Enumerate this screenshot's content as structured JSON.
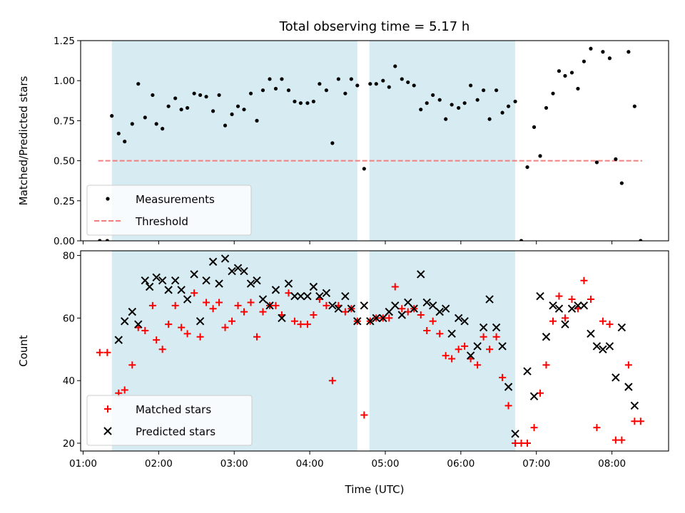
{
  "chart_data": [
    {
      "type": "scatter",
      "panel": "top",
      "title": "Total observing time = 5.17 h",
      "ylabel": "Matched/Predicted stars",
      "xlabel": "",
      "xlim": [
        0.967,
        8.75
      ],
      "ylim": [
        0,
        1.25
      ],
      "yticks": [
        "0.00",
        "0.25",
        "0.50",
        "0.75",
        "1.00",
        "1.25"
      ],
      "legend_position": "lower-left",
      "shaded_intervals": [
        [
          1.38,
          4.63
        ],
        [
          4.79,
          6.72
        ]
      ],
      "shade_color": "#add8e6",
      "threshold": {
        "name": "Threshold",
        "value": 0.5,
        "x_start": 1.2,
        "x_end": 8.4,
        "color": "#f08080"
      },
      "series": [
        {
          "name": "Measurements",
          "color": "#000000",
          "marker": "dot",
          "x": [
            1.22,
            1.32,
            1.38,
            1.47,
            1.55,
            1.65,
            1.73,
            1.82,
            1.92,
            1.97,
            2.05,
            2.13,
            2.22,
            2.3,
            2.38,
            2.47,
            2.55,
            2.63,
            2.72,
            2.8,
            2.88,
            2.97,
            3.05,
            3.13,
            3.22,
            3.3,
            3.38,
            3.47,
            3.55,
            3.63,
            3.72,
            3.8,
            3.88,
            3.97,
            4.05,
            4.13,
            4.22,
            4.3,
            4.38,
            4.47,
            4.55,
            4.63,
            4.72,
            4.8,
            4.88,
            4.97,
            5.05,
            5.13,
            5.22,
            5.3,
            5.38,
            5.47,
            5.55,
            5.63,
            5.72,
            5.8,
            5.88,
            5.97,
            6.05,
            6.13,
            6.22,
            6.3,
            6.38,
            6.47,
            6.55,
            6.63,
            6.72,
            6.8,
            6.88,
            6.97,
            7.05,
            7.13,
            7.22,
            7.3,
            7.38,
            7.47,
            7.55,
            7.63,
            7.72,
            7.8,
            7.88,
            7.97,
            8.05,
            8.13,
            8.22,
            8.3,
            8.38
          ],
          "y": [
            0.0,
            0.0,
            0.78,
            0.67,
            0.62,
            0.73,
            0.98,
            0.77,
            0.91,
            0.73,
            0.7,
            0.84,
            0.89,
            0.82,
            0.83,
            0.92,
            0.91,
            0.9,
            0.81,
            0.91,
            0.72,
            0.79,
            0.84,
            0.82,
            0.92,
            0.75,
            0.94,
            1.01,
            0.95,
            1.01,
            0.94,
            0.87,
            0.86,
            0.86,
            0.87,
            0.98,
            0.94,
            0.61,
            1.01,
            0.92,
            1.01,
            0.97,
            0.45,
            0.98,
            0.98,
            1.0,
            0.96,
            1.09,
            1.01,
            0.99,
            0.97,
            0.82,
            0.86,
            0.91,
            0.88,
            0.76,
            0.85,
            0.83,
            0.86,
            0.97,
            0.88,
            0.94,
            0.76,
            0.94,
            0.8,
            0.84,
            0.87,
            0.0,
            0.46,
            0.71,
            0.53,
            0.83,
            0.92,
            1.06,
            1.03,
            1.05,
            0.95,
            1.12,
            1.2,
            0.49,
            1.18,
            1.14,
            0.51,
            0.36,
            1.18,
            0.84,
            0.0
          ]
        }
      ]
    },
    {
      "type": "scatter",
      "panel": "bottom",
      "title": "",
      "ylabel": "Count",
      "xlabel": "Time (UTC)",
      "xlim": [
        0.967,
        8.75
      ],
      "ylim": [
        17.5,
        81.5
      ],
      "yticks": [
        "20",
        "40",
        "60",
        "80"
      ],
      "xticks": [
        "01:00",
        "02:00",
        "03:00",
        "04:00",
        "05:00",
        "06:00",
        "07:00",
        "08:00"
      ],
      "xtick_values": [
        1,
        2,
        3,
        4,
        5,
        6,
        7,
        8
      ],
      "legend_position": "lower-left",
      "shaded_intervals": [
        [
          1.38,
          4.63
        ],
        [
          4.79,
          6.72
        ]
      ],
      "shade_color": "#add8e6",
      "series": [
        {
          "name": "Matched stars",
          "color": "#ff0000",
          "marker": "plus",
          "x": [
            1.22,
            1.32,
            1.47,
            1.55,
            1.65,
            1.73,
            1.82,
            1.92,
            1.97,
            2.05,
            2.13,
            2.22,
            2.3,
            2.38,
            2.47,
            2.55,
            2.63,
            2.72,
            2.8,
            2.88,
            2.97,
            3.05,
            3.13,
            3.22,
            3.3,
            3.38,
            3.47,
            3.55,
            3.63,
            3.72,
            3.8,
            3.88,
            3.97,
            4.05,
            4.13,
            4.22,
            4.3,
            4.38,
            4.47,
            4.55,
            4.63,
            4.72,
            4.8,
            4.88,
            4.97,
            5.05,
            5.13,
            5.22,
            5.3,
            5.38,
            5.47,
            5.55,
            5.63,
            5.72,
            5.8,
            5.88,
            5.97,
            6.05,
            6.13,
            6.22,
            6.3,
            6.38,
            6.47,
            6.55,
            6.63,
            6.72,
            6.8,
            6.88,
            6.97,
            7.05,
            7.13,
            7.22,
            7.3,
            7.38,
            7.47,
            7.55,
            7.63,
            7.72,
            7.8,
            7.88,
            7.97,
            8.05,
            8.13,
            8.22,
            8.3,
            8.38
          ],
          "y": [
            49,
            49,
            36,
            37,
            45,
            57,
            56,
            64,
            53,
            50,
            58,
            64,
            57,
            55,
            68,
            54,
            65,
            63,
            65,
            57,
            59,
            64,
            62,
            65,
            54,
            62,
            64,
            64,
            61,
            68,
            59,
            58,
            58,
            61,
            66,
            64,
            40,
            64,
            62,
            63,
            59,
            29,
            59,
            60,
            60,
            60,
            70,
            63,
            62,
            63,
            61,
            56,
            59,
            55,
            48,
            47,
            50,
            51,
            47,
            45,
            54,
            50,
            54,
            41,
            32,
            20,
            20,
            20,
            25,
            36,
            45,
            59,
            67,
            60,
            66,
            63,
            72,
            66,
            25,
            59,
            58,
            21,
            21,
            45,
            27,
            27
          ]
        },
        {
          "name": "Predicted stars",
          "color": "#000000",
          "marker": "cross",
          "x": [
            1.47,
            1.55,
            1.65,
            1.73,
            1.82,
            1.88,
            1.97,
            2.05,
            2.13,
            2.22,
            2.3,
            2.38,
            2.47,
            2.55,
            2.63,
            2.72,
            2.8,
            2.88,
            2.97,
            3.05,
            3.13,
            3.22,
            3.3,
            3.38,
            3.47,
            3.55,
            3.63,
            3.72,
            3.8,
            3.88,
            3.97,
            4.05,
            4.13,
            4.22,
            4.3,
            4.38,
            4.47,
            4.55,
            4.63,
            4.72,
            4.8,
            4.88,
            4.97,
            5.05,
            5.13,
            5.22,
            5.3,
            5.38,
            5.47,
            5.55,
            5.63,
            5.72,
            5.8,
            5.88,
            5.97,
            6.05,
            6.13,
            6.22,
            6.3,
            6.38,
            6.47,
            6.55,
            6.63,
            6.72,
            6.88,
            6.97,
            7.05,
            7.13,
            7.22,
            7.3,
            7.38,
            7.47,
            7.55,
            7.63,
            7.72,
            7.8,
            7.88,
            7.97,
            8.05,
            8.13,
            8.22,
            8.3
          ],
          "y": [
            53,
            59,
            62,
            58,
            72,
            70,
            73,
            72,
            69,
            72,
            69,
            66,
            74,
            59,
            72,
            78,
            71,
            79,
            75,
            76,
            75,
            71,
            72,
            66,
            64,
            69,
            60,
            71,
            67,
            67,
            67,
            70,
            67,
            68,
            64,
            63,
            67,
            63,
            59,
            64,
            59,
            60,
            60,
            62,
            64,
            61,
            65,
            63,
            74,
            65,
            64,
            62,
            63,
            55,
            60,
            59,
            48,
            51,
            57,
            66,
            57,
            51,
            38,
            23,
            43,
            35,
            67,
            54,
            64,
            63,
            58,
            63,
            64,
            64,
            55,
            51,
            50,
            51,
            41,
            57,
            38,
            32
          ]
        }
      ]
    }
  ]
}
